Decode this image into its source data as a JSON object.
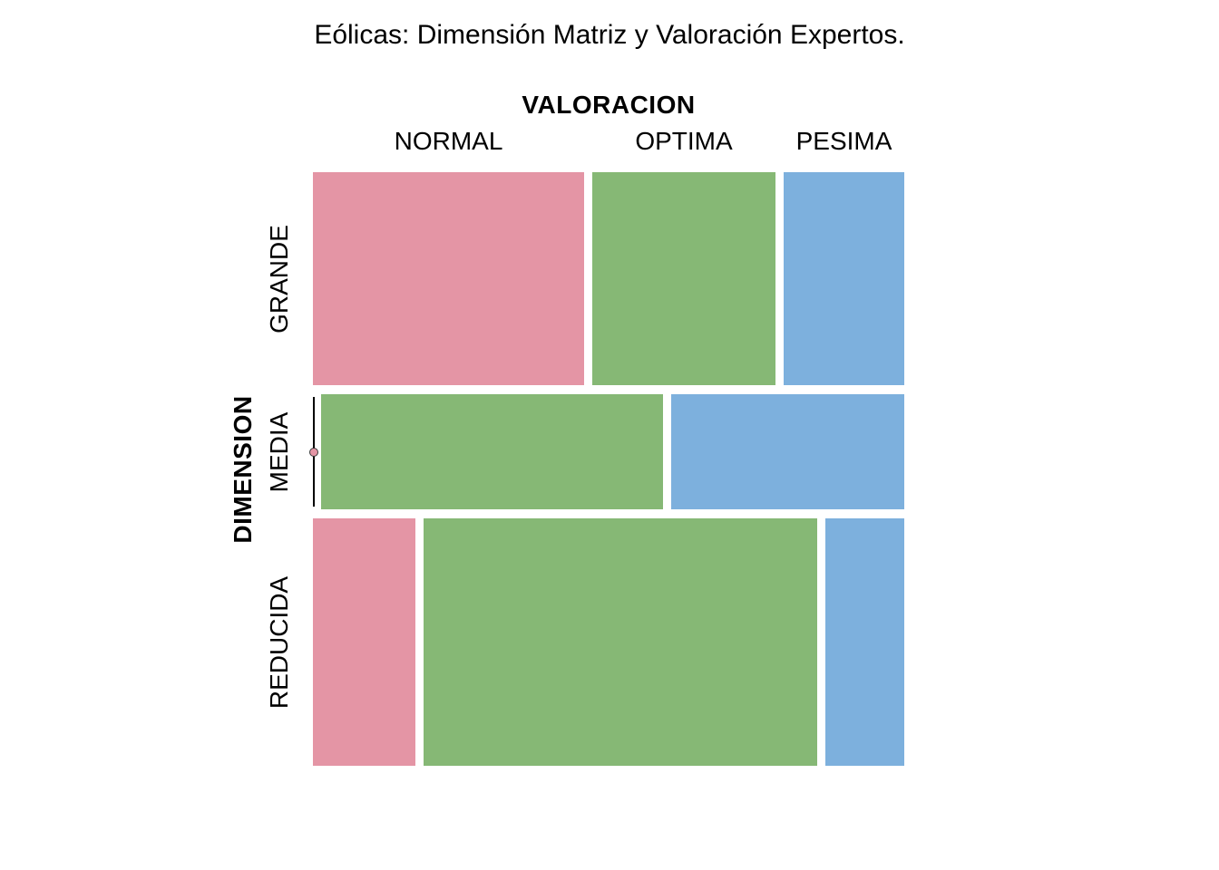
{
  "chart_data": {
    "type": "mosaic",
    "title": "Eólicas: Dimensión Matriz y Valoración Expertos.",
    "x_variable": "VALORACION",
    "y_variable": "DIMENSION",
    "columns": [
      "NORMAL",
      "OPTIMA",
      "PESIMA"
    ],
    "rows": [
      "GRANDE",
      "MEDIA",
      "REDUCIDA"
    ],
    "row_proportions": [
      0.37,
      0.2,
      0.43
    ],
    "cell_proportions_within_row": [
      [
        0.472,
        0.319,
        0.209
      ],
      [
        0.0,
        0.595,
        0.405
      ],
      [
        0.179,
        0.684,
        0.137
      ]
    ],
    "zero_cells": [
      {
        "row": "MEDIA",
        "column": "NORMAL"
      }
    ],
    "colors": {
      "NORMAL": "#E495A5",
      "OPTIMA": "#86B875",
      "PESIMA": "#7DB0DD"
    },
    "background_color": "#ffffff",
    "notes": "Mosaic plot: row heights proportional to DIMENSION totals; cell widths within each row proportional to VALORACION share. MEDIA/NORMAL cell has zero count, drawn as a vertical line with a small dot marker."
  }
}
